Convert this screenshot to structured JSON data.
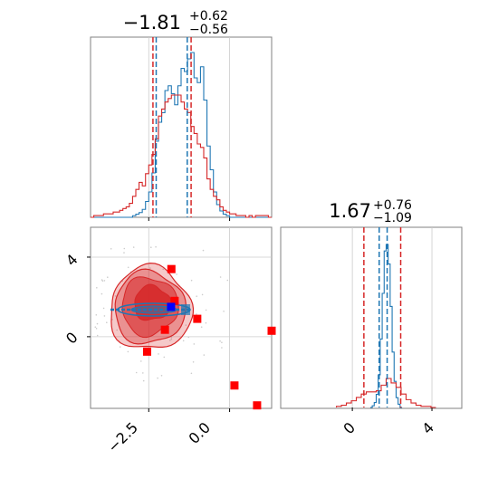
{
  "chart_data": {
    "type": "corner",
    "panels": {
      "marginal_x": {
        "title": {
          "main": "−1.81",
          "sup": "+0.62",
          "sub": "−0.56"
        },
        "xlim": [
          -4.3,
          1.3
        ],
        "quantile_lines_red": [
          -2.37,
          -1.19
        ],
        "quantile_lines_blue": [
          -2.27,
          -1.31
        ],
        "hist_blue": {
          "start": -4.3,
          "bin": 0.1,
          "counts": [
            0,
            0,
            0,
            0,
            0,
            0,
            0,
            0,
            0,
            0,
            0,
            0,
            0,
            1,
            2,
            3,
            5,
            10,
            16,
            28,
            48,
            60,
            66,
            80,
            83,
            78,
            71,
            83,
            94,
            92,
            100,
            104,
            88,
            85,
            95,
            74,
            45,
            30,
            16,
            8,
            4,
            2,
            1,
            0,
            0,
            0,
            0,
            0,
            0,
            0,
            0,
            0,
            0,
            0,
            0,
            0
          ]
        },
        "hist_red": {
          "start": -4.3,
          "bin": 0.1,
          "counts": [
            0,
            1,
            1,
            1,
            2,
            2,
            2,
            3,
            3,
            4,
            5,
            6,
            8,
            12,
            16,
            20,
            18,
            25,
            30,
            36,
            45,
            58,
            62,
            66,
            68,
            70,
            70,
            70,
            66,
            62,
            60,
            52,
            48,
            42,
            40,
            34,
            22,
            16,
            12,
            10,
            6,
            4,
            3,
            2,
            2,
            1,
            1,
            1,
            0,
            1,
            0,
            1,
            1,
            1,
            1,
            0
          ]
        }
      },
      "joint": {
        "xlim": [
          -4.3,
          1.3
        ],
        "ylim": [
          -3.6,
          5.5
        ],
        "xticks": [
          -2.5,
          0.0
        ],
        "xtick_labels": [
          "−2.5",
          "0.0"
        ],
        "yticks": [
          0,
          4
        ],
        "ytick_labels": [
          "0",
          "4"
        ],
        "red_squares": [
          [
            -1.8,
            3.4
          ],
          [
            -1.7,
            1.8
          ],
          [
            -1.0,
            0.9
          ],
          [
            -2.0,
            0.35
          ],
          [
            -2.55,
            -0.75
          ],
          [
            0.15,
            -2.45
          ],
          [
            1.3,
            0.3
          ],
          [
            0.85,
            -3.45
          ]
        ],
        "blue_square": [
          -1.81,
          1.5
        ]
      },
      "marginal_y": {
        "title": {
          "main": "1.67",
          "sup": "+0.76",
          "sub": "−1.09"
        },
        "xlim": [
          -3.6,
          5.5
        ],
        "xticks": [
          0,
          4
        ],
        "xtick_labels": [
          "0",
          "4"
        ],
        "quantile_lines_red": [
          0.58,
          2.43
        ],
        "quantile_lines_blue": [
          1.35,
          1.75
        ],
        "hist_blue": {
          "start": 0.9,
          "bin": 0.1,
          "counts": [
            0,
            1,
            3,
            8,
            20,
            42,
            70,
            96,
            100,
            88,
            62,
            34,
            16,
            6,
            2,
            0
          ]
        },
        "hist_red": {
          "start": -0.8,
          "bin": 0.25,
          "counts": [
            1,
            2,
            4,
            6,
            9,
            12,
            14,
            14,
            15,
            20,
            26,
            22,
            18,
            12,
            7,
            4,
            2,
            1,
            1,
            0
          ]
        }
      }
    }
  }
}
